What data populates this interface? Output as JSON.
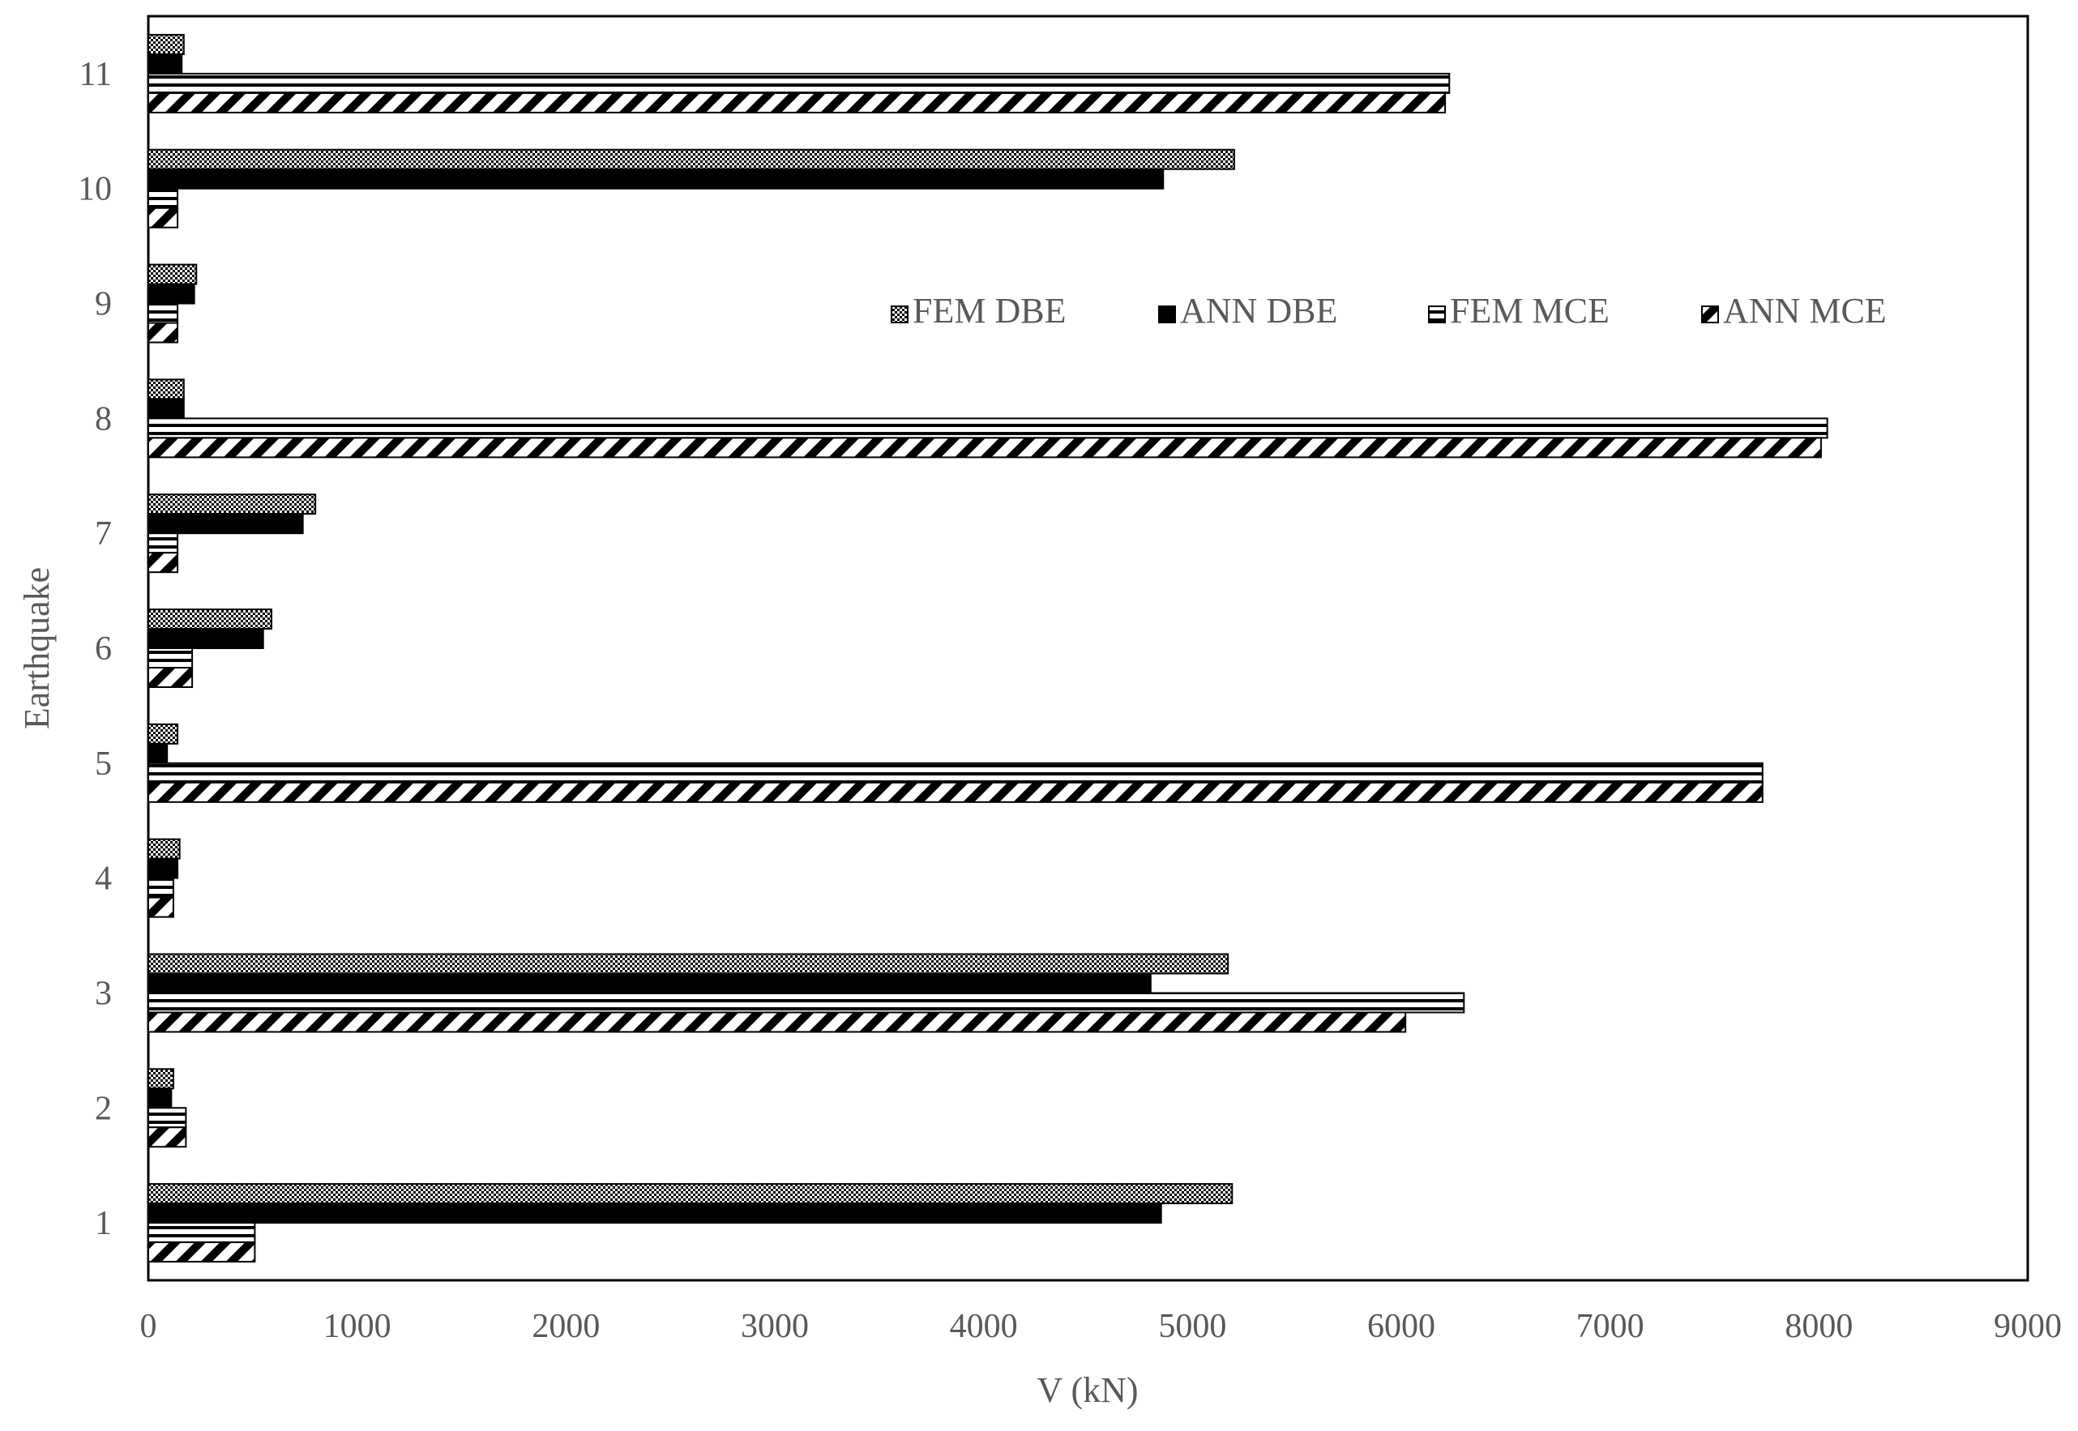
{
  "chart_data": {
    "type": "bar",
    "orientation": "horizontal",
    "title": "",
    "xlabel": "V (kN)",
    "ylabel": "Earthquake",
    "xlim": [
      0,
      9000
    ],
    "x_ticks": [
      0,
      1000,
      2000,
      3000,
      4000,
      5000,
      6000,
      7000,
      8000,
      9000
    ],
    "categories": [
      "1",
      "2",
      "3",
      "4",
      "5",
      "6",
      "7",
      "8",
      "9",
      "10",
      "11"
    ],
    "grid": false,
    "legend_position": "top-right",
    "series": [
      {
        "name": "FEM DBE",
        "pattern": "dots",
        "values": [
          5190,
          120,
          5170,
          150,
          140,
          590,
          800,
          170,
          230,
          5200,
          170
        ]
      },
      {
        "name": "ANN DBE",
        "pattern": "solid",
        "values": [
          4850,
          110,
          4800,
          140,
          90,
          550,
          740,
          170,
          220,
          4860,
          160
        ]
      },
      {
        "name": "FEM MCE",
        "pattern": "horizontal-lines",
        "values": [
          510,
          180,
          6300,
          120,
          7730,
          210,
          140,
          8040,
          140,
          140,
          6230
        ]
      },
      {
        "name": "ANN MCE",
        "pattern": "diagonal-stripes",
        "values": [
          510,
          180,
          6020,
          120,
          7730,
          210,
          140,
          8010,
          140,
          140,
          6210
        ]
      }
    ],
    "colors": {
      "axis": "#000000",
      "text": "#595959",
      "bar_fill": "#000000",
      "bar_bg": "#ffffff"
    }
  }
}
